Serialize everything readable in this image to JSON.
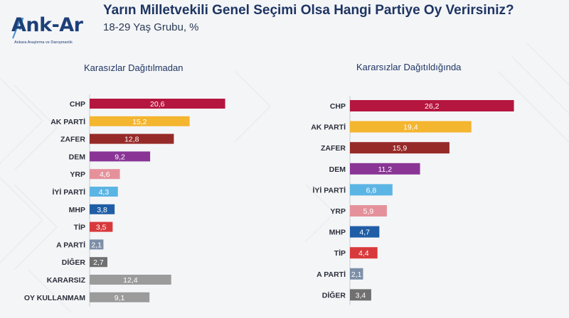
{
  "brand": {
    "name": "Ank-Ar",
    "tagline": "Ankara Araştırma ve Danışmanlık"
  },
  "header": {
    "title": "Yarın Milletvekili Genel Seçimi Olsa Hangi Partiye Oy Verirsiniz?",
    "subtitle": "18-29 Yaş Grubu, %"
  },
  "chart_data": [
    {
      "type": "bar",
      "orientation": "horizontal",
      "title": "Karasızlar Dağıtılmadan",
      "categories": [
        "CHP",
        "AK PARTİ",
        "ZAFER",
        "DEM",
        "YRP",
        "İYİ PARTİ",
        "MHP",
        "TİP",
        "A PARTİ",
        "DİĞER",
        "KARARSIZ",
        "OY KULLANMAM"
      ],
      "values": [
        20.6,
        15.2,
        12.8,
        9.2,
        4.6,
        4.3,
        3.8,
        3.5,
        2.1,
        2.7,
        12.4,
        9.1
      ],
      "labels": [
        "20,6",
        "15,2",
        "12,8",
        "9,2",
        "4,6",
        "4,3",
        "3,8",
        "3,5",
        "2,1",
        "2,7",
        "12,4",
        "9,1"
      ],
      "colors": [
        "#b5163f",
        "#f4b52f",
        "#962a28",
        "#8a3596",
        "#e5919b",
        "#5bb5e4",
        "#1f5ea6",
        "#d83a3c",
        "#7d8fa7",
        "#707070",
        "#9b9b9b",
        "#9b9b9b"
      ]
    },
    {
      "type": "bar",
      "orientation": "horizontal",
      "title": "Kararsızlar Dağıtıldığında",
      "categories": [
        "CHP",
        "AK PARTİ",
        "ZAFER",
        "DEM",
        "İYİ PARTİ",
        "YRP",
        "MHP",
        "TİP",
        "A PARTİ",
        "DİĞER"
      ],
      "values": [
        26.2,
        19.4,
        15.9,
        11.2,
        6.8,
        5.9,
        4.7,
        4.4,
        2.1,
        3.4
      ],
      "labels": [
        "26,2",
        "19,4",
        "15,9",
        "11,2",
        "6,8",
        "5,9",
        "4,7",
        "4,4",
        "2,1",
        "3,4"
      ],
      "colors": [
        "#b5163f",
        "#f4b52f",
        "#962a28",
        "#8a3596",
        "#5bb5e4",
        "#e5919b",
        "#1f5ea6",
        "#d83a3c",
        "#7d8fa7",
        "#707070"
      ]
    }
  ]
}
